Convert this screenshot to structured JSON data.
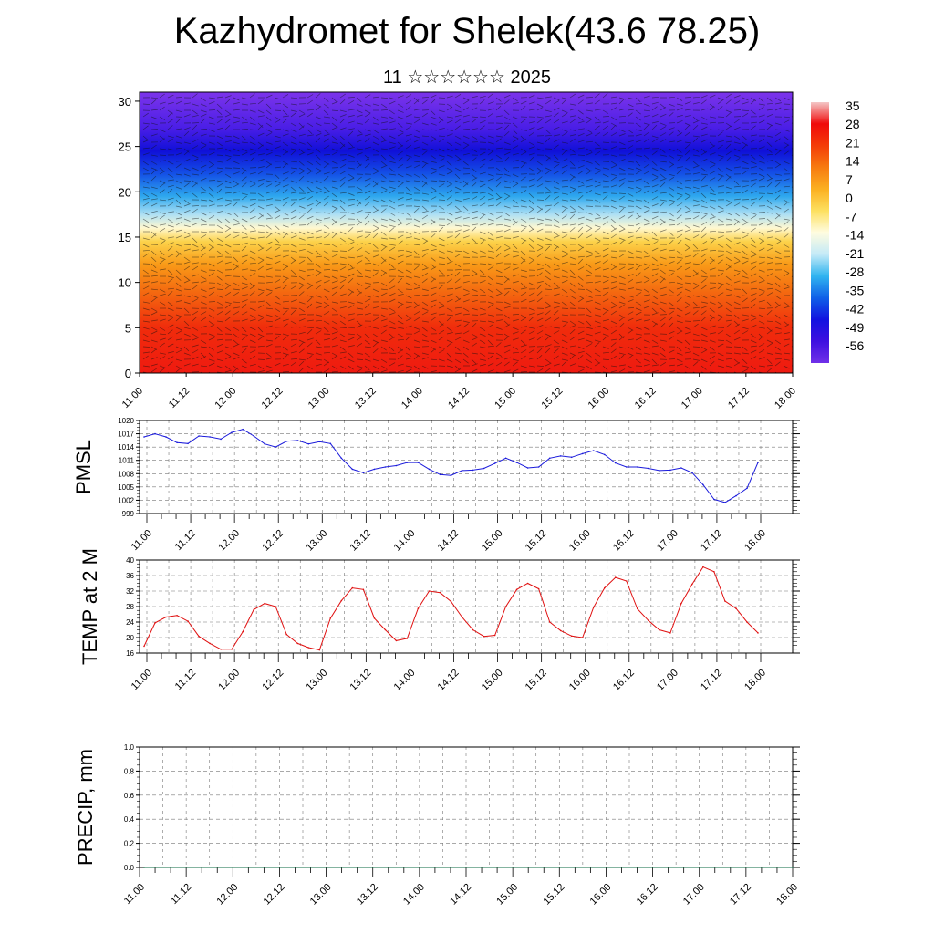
{
  "header": {
    "title": "Kazhydromet for Shelek(43.6 78.25)",
    "subtitle": "11 ☆☆☆☆☆☆ 2025"
  },
  "colors": {
    "pmsl_line": "#1a1adb",
    "temp_line": "#e01010",
    "precip_line": "#0a6a40",
    "axis": "#000000"
  },
  "time_ticks": [
    "11.00",
    "11.12",
    "12.00",
    "12.12",
    "13.00",
    "13.12",
    "14.00",
    "14.12",
    "15.00",
    "15.12",
    "16.00",
    "16.12",
    "17.00",
    "17.12",
    "18.00"
  ],
  "chart_data": [
    {
      "type": "heatmap",
      "title": "",
      "ylabel": "",
      "ylim": [
        0,
        31
      ],
      "yticks": [
        0,
        5,
        10,
        15,
        20,
        25,
        30
      ],
      "xticks": [
        "11.00",
        "11.12",
        "12.00",
        "12.12",
        "13.00",
        "13.12",
        "14.00",
        "14.12",
        "15.00",
        "15.12",
        "16.00",
        "16.12",
        "17.00",
        "17.12",
        "18.00"
      ],
      "colorbar": {
        "labels": [
          "35",
          "28",
          "21",
          "14",
          "7",
          "0",
          "-7",
          "-14",
          "-21",
          "-28",
          "-35",
          "-42",
          "-49",
          "-56"
        ],
        "stops": [
          "#f4c7c7",
          "#f00a0a",
          "#f43c08",
          "#f77b10",
          "#fbb020",
          "#fde060",
          "#fffce0",
          "#c4eaf7",
          "#30b4f0",
          "#1060e8",
          "#1212e0",
          "#3e10e0",
          "#7030e8"
        ]
      },
      "layers": [
        {
          "level": 0,
          "color": "#ef1a10"
        },
        {
          "level": 5,
          "color": "#f02c0c"
        },
        {
          "level": 9,
          "color": "#f46a10"
        },
        {
          "level": 12,
          "color": "#f99a18"
        },
        {
          "level": 14.5,
          "color": "#fcd24a"
        },
        {
          "level": 16,
          "color": "#fff8d0"
        },
        {
          "level": 17.5,
          "color": "#aee0f4"
        },
        {
          "level": 19.5,
          "color": "#2ea8ee"
        },
        {
          "level": 22,
          "color": "#1450e6"
        },
        {
          "level": 24.5,
          "color": "#1010d8"
        },
        {
          "level": 27,
          "color": "#4a1ee6"
        },
        {
          "level": 31,
          "color": "#7c34ea"
        }
      ]
    },
    {
      "type": "line",
      "ylabel": "PMSL",
      "ylim": [
        999,
        1020
      ],
      "yticks": [
        999,
        1002,
        1005,
        1008,
        1011,
        1014,
        1017,
        1020
      ],
      "xticks": [
        "11.00",
        "11.12",
        "12.00",
        "12.12",
        "13.00",
        "13.12",
        "14.00",
        "14.12",
        "15.00",
        "15.12",
        "16.00",
        "16.12",
        "17.00",
        "17.12",
        "18.00"
      ],
      "series": [
        {
          "x": [
            0,
            3,
            6,
            9,
            12,
            15,
            18,
            21,
            24,
            27,
            30,
            33,
            36,
            39,
            42,
            45,
            48,
            51,
            54,
            57,
            60,
            63,
            66,
            69,
            72,
            75,
            78,
            81,
            84,
            87,
            90,
            93,
            96,
            99,
            102,
            105,
            108,
            111,
            114,
            117,
            120,
            123,
            126,
            129,
            132,
            135,
            138,
            141,
            144,
            147,
            150,
            153,
            156,
            159,
            162,
            165,
            168
          ],
          "values": [
            1016.3,
            1017.0,
            1016.3,
            1015.0,
            1014.8,
            1016.5,
            1016.3,
            1015.8,
            1017.3,
            1018.0,
            1016.5,
            1014.7,
            1014.0,
            1015.3,
            1015.5,
            1014.7,
            1015.2,
            1014.8,
            1011.5,
            1009.0,
            1008.2,
            1009.0,
            1009.5,
            1009.8,
            1010.5,
            1010.5,
            1009.0,
            1007.8,
            1007.6,
            1008.7,
            1008.8,
            1009.2,
            1010.3,
            1011.5,
            1010.5,
            1009.3,
            1009.5,
            1011.5,
            1012.0,
            1011.7,
            1012.5,
            1013.2,
            1012.3,
            1010.4,
            1009.5,
            1009.5,
            1009.2,
            1008.7,
            1008.8,
            1009.3,
            1008.2,
            1005.5,
            1002.2,
            1001.5,
            1003.0,
            1004.7,
            1010.5
          ]
        }
      ]
    },
    {
      "type": "line",
      "ylabel": "TEMP at 2 M",
      "ylim": [
        16,
        40
      ],
      "yticks": [
        16,
        20,
        24,
        28,
        32,
        36,
        40
      ],
      "xticks": [
        "11.00",
        "11.12",
        "12.00",
        "12.12",
        "13.00",
        "13.12",
        "14.00",
        "14.12",
        "15.00",
        "15.12",
        "16.00",
        "16.12",
        "17.00",
        "17.12",
        "18.00"
      ],
      "series": [
        {
          "x": [
            0,
            3,
            6,
            9,
            12,
            15,
            18,
            21,
            24,
            27,
            30,
            33,
            36,
            39,
            42,
            45,
            48,
            51,
            54,
            57,
            60,
            63,
            66,
            69,
            72,
            75,
            78,
            81,
            84,
            87,
            90,
            93,
            96,
            99,
            102,
            105,
            108,
            111,
            114,
            117,
            120,
            123,
            126,
            129,
            132,
            135,
            138,
            141,
            144,
            147,
            150,
            153,
            156,
            159,
            162,
            165,
            168
          ],
          "values": [
            17.8,
            23.8,
            25.3,
            25.7,
            24.2,
            20.3,
            18.5,
            17.0,
            17.0,
            21.5,
            27.2,
            28.8,
            28.0,
            20.8,
            18.5,
            17.4,
            16.8,
            25.0,
            29.5,
            32.8,
            32.4,
            25.0,
            22.0,
            19.2,
            19.8,
            27.5,
            32.0,
            31.6,
            29.3,
            25.3,
            22.0,
            20.3,
            20.6,
            28.0,
            32.4,
            34.0,
            32.6,
            24.0,
            21.8,
            20.4,
            20.0,
            27.8,
            32.8,
            35.5,
            34.6,
            27.4,
            24.4,
            22.0,
            21.2,
            28.8,
            33.8,
            38.2,
            37.0,
            29.4,
            27.5,
            24.0,
            21.2
          ]
        }
      ]
    },
    {
      "type": "line",
      "ylabel": "PRECIP, mm",
      "ylim": [
        0,
        1.0
      ],
      "yticks": [
        "0.0",
        "0.2",
        "0.4",
        "0.6",
        "0.8",
        "1.0"
      ],
      "xticks": [
        "11.00",
        "11.12",
        "12.00",
        "12.12",
        "13.00",
        "13.12",
        "14.00",
        "14.12",
        "15.00",
        "15.12",
        "16.00",
        "16.12",
        "17.00",
        "17.12",
        "18.00"
      ],
      "series": [
        {
          "x": [
            0,
            168
          ],
          "values": [
            0.0,
            0.0
          ]
        }
      ]
    }
  ]
}
